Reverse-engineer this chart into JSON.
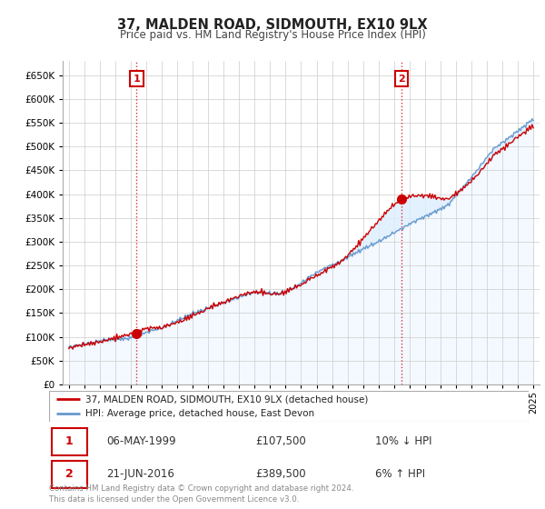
{
  "title": "37, MALDEN ROAD, SIDMOUTH, EX10 9LX",
  "subtitle": "Price paid vs. HM Land Registry's House Price Index (HPI)",
  "legend_line1": "37, MALDEN ROAD, SIDMOUTH, EX10 9LX (detached house)",
  "legend_line2": "HPI: Average price, detached house, East Devon",
  "annotation1_date": "06-MAY-1999",
  "annotation1_price": "£107,500",
  "annotation1_hpi": "10% ↓ HPI",
  "annotation2_date": "21-JUN-2016",
  "annotation2_price": "£389,500",
  "annotation2_hpi": "6% ↑ HPI",
  "footer": "Contains HM Land Registry data © Crown copyright and database right 2024.\nThis data is licensed under the Open Government Licence v3.0.",
  "price_color": "#cc0000",
  "hpi_color": "#6699cc",
  "hpi_fill_color": "#ddeeff",
  "background_color": "#ffffff",
  "grid_color": "#cccccc",
  "ylim": [
    0,
    680000
  ],
  "yticks": [
    0,
    50000,
    100000,
    150000,
    200000,
    250000,
    300000,
    350000,
    400000,
    450000,
    500000,
    550000,
    600000,
    650000
  ],
  "xlim_left": 1994.6,
  "xlim_right": 2025.4,
  "ann1_x": 1999.37,
  "ann1_y": 107500,
  "ann2_x": 2016.47,
  "ann2_y": 389500
}
